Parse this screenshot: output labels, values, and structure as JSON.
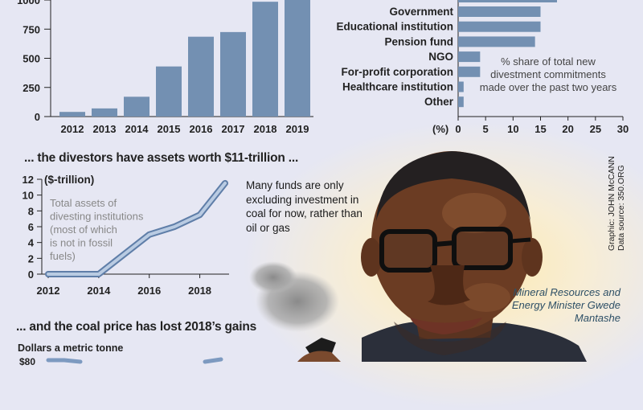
{
  "colors": {
    "bar": "#7390b2",
    "line": "#7d9ac0",
    "axis": "#222222",
    "caption": "#2d4f66"
  },
  "chart_data": [
    {
      "type": "bar",
      "categories": [
        "2012",
        "2013",
        "2014",
        "2015",
        "2016",
        "2017",
        "2018",
        "2019"
      ],
      "values": [
        40,
        70,
        170,
        430,
        685,
        725,
        985,
        1000
      ],
      "y_ticks": [
        "0",
        "250",
        "500",
        "750",
        "1000"
      ],
      "ylim": [
        0,
        1000
      ],
      "title": "",
      "xlabel": "",
      "ylabel": ""
    },
    {
      "type": "bar",
      "orientation": "horizontal",
      "categories": [
        "Government",
        "Educational institution",
        "Pension fund",
        "NGO",
        "For-profit corporation",
        "Healthcare institution",
        "Other"
      ],
      "values": [
        15,
        15,
        14,
        4,
        4,
        1,
        1
      ],
      "x_ticks": [
        "0",
        "5",
        "10",
        "15",
        "20",
        "25",
        "30"
      ],
      "x_unit_label": "(%)",
      "xlim": [
        0,
        30
      ],
      "annotation": "% share of total new divestment commitments made over the past two years"
    },
    {
      "type": "line",
      "title": "... the divestors have assets worth $11-trillion ...",
      "ylabel": "($-trillion)",
      "x": [
        2012,
        2014,
        2016,
        2017,
        2018,
        2019
      ],
      "values": [
        0,
        0,
        5,
        6,
        7.5,
        11.5
      ],
      "x_ticks": [
        "2012",
        "2014",
        "2016",
        "2018"
      ],
      "y_ticks": [
        "0",
        "2",
        "4",
        "6",
        "8",
        "10",
        "12"
      ],
      "ylim": [
        0,
        12
      ],
      "xlim": [
        2012,
        2019
      ],
      "annotation": "Total assets of divesting institutions (most of which is not in fossil fuels)"
    }
  ],
  "headings": {
    "coal": "... and the coal price has lost 2018’s gains",
    "coal_units": "Dollars a metric tonne",
    "coal_tick": "$80"
  },
  "note": "Many funds are only excluding investment in coal for now, rather than oil or gas",
  "caption": "Mineral Resources and Energy Minister Gwede Mantashe",
  "credit": {
    "graphic": "Graphic: JOHN McCANN",
    "source": "Data source: 350.ORG"
  }
}
